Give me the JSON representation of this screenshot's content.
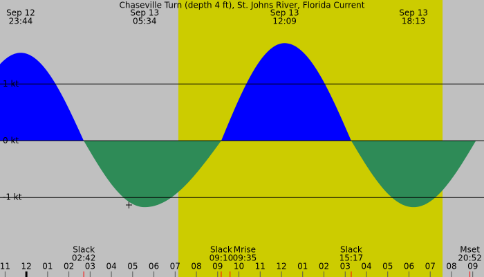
{
  "chart_data": {
    "type": "current",
    "title": "Chaseville Turn (depth 4 ft), St. Johns River, Florida Current",
    "xlim": [
      -1.24,
      21.53
    ],
    "ylim": [
      -2.4,
      2.48
    ],
    "yticks": [
      {
        "value": 1,
        "label": "1 kt"
      },
      {
        "value": 0,
        "label": "0 kt"
      },
      {
        "value": -1,
        "label": "-1 kt"
      }
    ],
    "xticks": [
      {
        "value": -1,
        "label": "11"
      },
      {
        "value": 0,
        "label": "12"
      },
      {
        "value": 1,
        "label": "01"
      },
      {
        "value": 2,
        "label": "02"
      },
      {
        "value": 3,
        "label": "03"
      },
      {
        "value": 4,
        "label": "04"
      },
      {
        "value": 5,
        "label": "05"
      },
      {
        "value": 6,
        "label": "06"
      },
      {
        "value": 7,
        "label": "07"
      },
      {
        "value": 8,
        "label": "08"
      },
      {
        "value": 9,
        "label": "09"
      },
      {
        "value": 10,
        "label": "10"
      },
      {
        "value": 11,
        "label": "11"
      },
      {
        "value": 12,
        "label": "12"
      },
      {
        "value": 13,
        "label": "01"
      },
      {
        "value": 14,
        "label": "02"
      },
      {
        "value": 15,
        "label": "03"
      },
      {
        "value": 16,
        "label": "04"
      },
      {
        "value": 17,
        "label": "05"
      },
      {
        "value": 18,
        "label": "06"
      },
      {
        "value": 19,
        "label": "07"
      },
      {
        "value": 20,
        "label": "08"
      },
      {
        "value": 21,
        "label": "09"
      }
    ],
    "daylight": [
      7.15,
      19.58
    ],
    "flood_color": "#0000ff",
    "ebb_color": "#2e8b57",
    "day_color": "#cccc00",
    "night_color": "#c0c0c0",
    "peaks": [
      {
        "date": "Sep 12",
        "time": "23:44",
        "value": 1.55
      },
      {
        "date": "Sep 13",
        "time": "05:34",
        "value": -1.17
      },
      {
        "date": "Sep 13",
        "time": "12:09",
        "value": 1.72
      },
      {
        "date": "Sep 13",
        "time": "18:13",
        "value": -1.17
      }
    ],
    "events": [
      {
        "label": "Slack",
        "time": "02:42"
      },
      {
        "label": "Slack",
        "time": "09:10"
      },
      {
        "label": "Mrise",
        "time": "09:35"
      },
      {
        "label": "Slack",
        "time": "15:17"
      },
      {
        "label": "Mset",
        "time": "20:52"
      }
    ]
  }
}
